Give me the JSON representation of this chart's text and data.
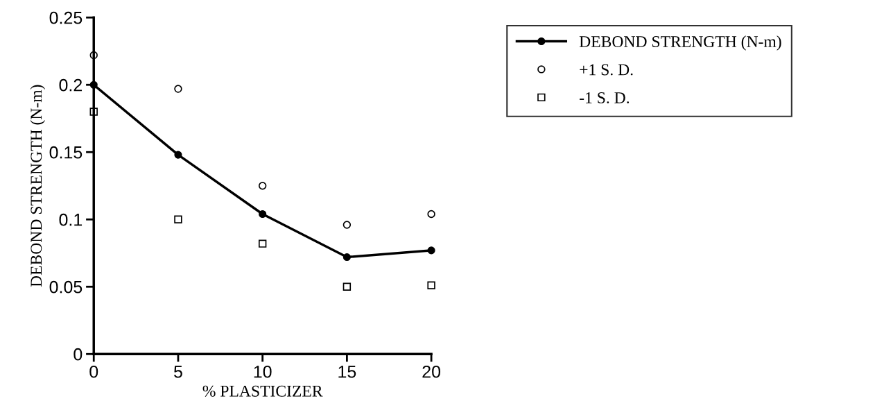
{
  "chart_data": {
    "type": "line",
    "xlabel": "% PLASTICIZER",
    "ylabel": "DEBOND STRENGTH (N-m)",
    "x": [
      0,
      5,
      10,
      15,
      20
    ],
    "series": [
      {
        "name": "DEBOND STRENGTH (N-m)",
        "color": "#000000",
        "marker": "circle",
        "values": [
          0.2,
          0.148,
          0.104,
          0.072,
          0.077
        ]
      },
      {
        "name": "+1 S. D.",
        "color": "#000000",
        "type": "scatter",
        "marker": "circle",
        "values": [
          0.222,
          0.197,
          0.125,
          0.096,
          0.104
        ]
      },
      {
        "name": "-1 S. D.",
        "color": "#000000",
        "type": "scatter",
        "marker": "square",
        "values": [
          0.18,
          0.1,
          0.082,
          0.05,
          0.051
        ]
      }
    ],
    "xlim": [
      0,
      20
    ],
    "xticks": [
      0,
      5,
      10,
      15,
      20
    ],
    "ylim": [
      0,
      0.25
    ],
    "yticks": [
      0,
      0.05,
      0.1,
      0.15,
      0.2,
      0.25
    ],
    "grid": false,
    "legend": "top right"
  }
}
